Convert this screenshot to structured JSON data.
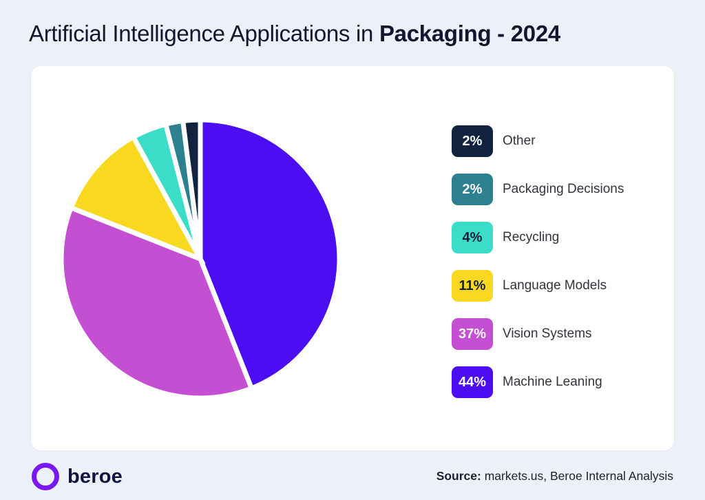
{
  "page": {
    "background_color": "#ecf0f8",
    "card_color": "#ffffff",
    "title_regular": "Artificial Intelligence Applications in ",
    "title_bold": "Packaging - 2024"
  },
  "chart_data": {
    "type": "pie",
    "title": "Artificial Intelligence Applications in Packaging - 2024",
    "unit": "%",
    "start_angle_deg": 0,
    "direction": "clockwise, largest slice first from 12 o'clock",
    "legend_position": "right",
    "gap_color": "#ffffff",
    "segments": [
      {
        "label": "Other",
        "value": 2,
        "pct_label": "2%",
        "color": "#122340",
        "text_color": "#ffffff"
      },
      {
        "label": "Packaging Decisions",
        "value": 2,
        "pct_label": "2%",
        "color": "#2d8090",
        "text_color": "#ffffff"
      },
      {
        "label": "Recycling",
        "value": 4,
        "pct_label": "4%",
        "color": "#3bdcc8",
        "text_color": "#13213f"
      },
      {
        "label": "Language Models",
        "value": 11,
        "pct_label": "11%",
        "color": "#f8d920",
        "text_color": "#13213f"
      },
      {
        "label": "Vision Systems",
        "value": 37,
        "pct_label": "37%",
        "color": "#c44fd2",
        "text_color": "#ffffff"
      },
      {
        "label": "Machine Leaning",
        "value": 44,
        "pct_label": "44%",
        "color": "#4d0df2",
        "text_color": "#ffffff"
      }
    ]
  },
  "footer": {
    "logo_text": "beroe",
    "logo_ring_color": "#7a17f2",
    "source_label": "Source:",
    "source_text": " markets.us, Beroe Internal Analysis"
  }
}
